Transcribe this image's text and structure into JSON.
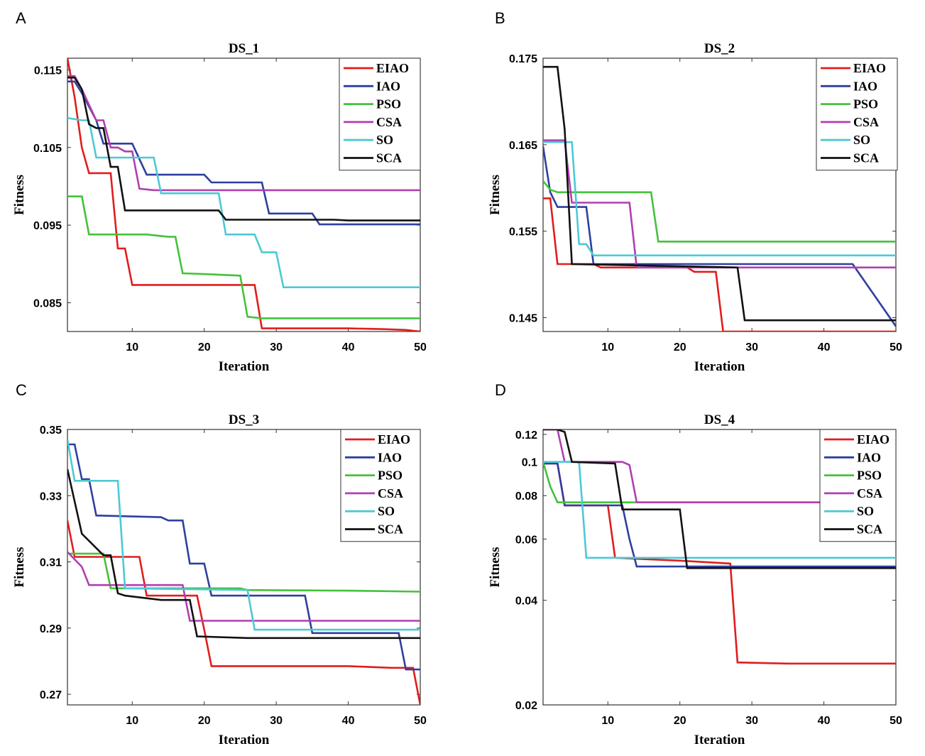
{
  "colors": {
    "EIAO": "#e11d1d",
    "IAO": "#2f3f9e",
    "PSO": "#44c23a",
    "CSA": "#b13fb0",
    "SO": "#4cc9d6",
    "SCA": "#111111"
  },
  "chart_data": [
    {
      "panel": "A",
      "type": "line",
      "title": "DS_1",
      "xlabel": "Iteration",
      "ylabel": "Fitness",
      "xlim": [
        1,
        50
      ],
      "ylim": [
        0.0813,
        0.1165
      ],
      "xticks": [
        10,
        20,
        30,
        40,
        50
      ],
      "yticks": [
        0.085,
        0.095,
        0.105,
        0.115
      ],
      "ytick_labels": [
        "0.085",
        "0.095",
        "0.105",
        "0.115"
      ],
      "legend_position": "top-right",
      "series": [
        {
          "name": "EIAO",
          "x": [
            1,
            2,
            3,
            4,
            6,
            7,
            8,
            9,
            10,
            22,
            27,
            28,
            40,
            45,
            48,
            50
          ],
          "y": [
            0.1165,
            0.1115,
            0.105,
            0.1017,
            0.1017,
            0.1017,
            0.092,
            0.092,
            0.0873,
            0.0873,
            0.0873,
            0.0817,
            0.0817,
            0.0816,
            0.0815,
            0.0813
          ]
        },
        {
          "name": "IAO",
          "x": [
            1,
            2,
            3,
            5,
            6,
            9,
            10,
            12,
            20,
            21,
            28,
            29,
            35,
            36,
            50
          ],
          "y": [
            0.1135,
            0.1135,
            0.112,
            0.1085,
            0.1055,
            0.1055,
            0.1055,
            0.1015,
            0.1015,
            0.1005,
            0.1005,
            0.0965,
            0.0965,
            0.0951,
            0.0951
          ]
        },
        {
          "name": "PSO",
          "x": [
            1,
            3,
            4,
            12,
            15,
            16,
            17,
            20,
            25,
            26,
            28,
            50
          ],
          "y": [
            0.0987,
            0.0987,
            0.0938,
            0.0938,
            0.0935,
            0.0935,
            0.0888,
            0.0887,
            0.0885,
            0.0832,
            0.083,
            0.083
          ]
        },
        {
          "name": "CSA",
          "x": [
            1,
            2,
            3,
            5,
            6,
            7,
            8,
            9,
            10,
            11,
            13,
            50
          ],
          "y": [
            0.1142,
            0.1142,
            0.1125,
            0.1085,
            0.1085,
            0.105,
            0.105,
            0.1045,
            0.1045,
            0.0997,
            0.0995,
            0.0995
          ]
        },
        {
          "name": "SO",
          "x": [
            1,
            3,
            4,
            5,
            13,
            14,
            22,
            23,
            27,
            28,
            30,
            31,
            50
          ],
          "y": [
            0.1088,
            0.1085,
            0.1085,
            0.1037,
            0.1037,
            0.0991,
            0.0991,
            0.0938,
            0.0938,
            0.0915,
            0.0915,
            0.087,
            0.087
          ]
        },
        {
          "name": "SCA",
          "x": [
            1,
            2,
            3,
            4,
            5,
            6,
            7,
            8,
            9,
            22,
            23,
            38,
            40,
            50
          ],
          "y": [
            0.114,
            0.114,
            0.1125,
            0.108,
            0.1075,
            0.1075,
            0.1025,
            0.1025,
            0.0969,
            0.0969,
            0.0957,
            0.0957,
            0.0956,
            0.0956
          ]
        }
      ]
    },
    {
      "panel": "B",
      "type": "line",
      "title": "DS_2",
      "xlabel": "Iteration",
      "ylabel": "Fitness",
      "xlim": [
        1,
        50
      ],
      "ylim": [
        0.1434,
        0.175
      ],
      "xticks": [
        10,
        20,
        30,
        40,
        50
      ],
      "yticks": [
        0.145,
        0.155,
        0.165,
        0.175
      ],
      "ytick_labels": [
        "0.145",
        "0.155",
        "0.165",
        "0.175"
      ],
      "legend_position": "top-right",
      "series": [
        {
          "name": "EIAO",
          "x": [
            1,
            2,
            3,
            8,
            9,
            10,
            21,
            22,
            25,
            26,
            50
          ],
          "y": [
            0.1588,
            0.1588,
            0.1512,
            0.1512,
            0.1508,
            0.1508,
            0.1508,
            0.1503,
            0.1503,
            0.1434,
            0.1434
          ]
        },
        {
          "name": "IAO",
          "x": [
            1,
            2,
            3,
            6,
            7,
            8,
            44,
            50
          ],
          "y": [
            0.1648,
            0.1595,
            0.1578,
            0.1578,
            0.1578,
            0.1512,
            0.1512,
            0.144
          ]
        },
        {
          "name": "PSO",
          "x": [
            1,
            2,
            3,
            16,
            17,
            50
          ],
          "y": [
            0.1608,
            0.1598,
            0.1595,
            0.1595,
            0.1538,
            0.1538
          ]
        },
        {
          "name": "CSA",
          "x": [
            1,
            3,
            4,
            5,
            13,
            14,
            50
          ],
          "y": [
            0.1655,
            0.1655,
            0.1655,
            0.1583,
            0.1583,
            0.1508,
            0.1508
          ]
        },
        {
          "name": "SO",
          "x": [
            1,
            5,
            6,
            7,
            8,
            50
          ],
          "y": [
            0.1653,
            0.1653,
            0.1535,
            0.1535,
            0.1522,
            0.1522
          ]
        },
        {
          "name": "SCA",
          "x": [
            1,
            3,
            4,
            5,
            28,
            29,
            50
          ],
          "y": [
            0.174,
            0.174,
            0.1668,
            0.1512,
            0.1508,
            0.1447,
            0.1447
          ]
        }
      ]
    },
    {
      "panel": "C",
      "type": "line",
      "title": "DS_3",
      "xlabel": "Iteration",
      "ylabel": "Fitness",
      "xlim": [
        1,
        50
      ],
      "ylim": [
        0.2668,
        0.35
      ],
      "xticks": [
        10,
        20,
        30,
        40,
        50
      ],
      "yticks": [
        0.27,
        0.29,
        0.31,
        0.33,
        0.35
      ],
      "ytick_labels": [
        "0.27",
        "0.29",
        "0.31",
        "0.33",
        "0.35"
      ],
      "legend_position": "top-right",
      "series": [
        {
          "name": "EIAO",
          "x": [
            1,
            2,
            11,
            12,
            19,
            20,
            21,
            30,
            40,
            46,
            49,
            50
          ],
          "y": [
            0.3225,
            0.3115,
            0.3115,
            0.2998,
            0.2998,
            0.2895,
            0.2785,
            0.2785,
            0.2785,
            0.278,
            0.278,
            0.2668
          ]
        },
        {
          "name": "IAO",
          "x": [
            1,
            2,
            3,
            4,
            5,
            14,
            15,
            17,
            18,
            20,
            21,
            34,
            35,
            47,
            48,
            50
          ],
          "y": [
            0.3455,
            0.3455,
            0.335,
            0.335,
            0.324,
            0.3235,
            0.3225,
            0.3225,
            0.3095,
            0.3095,
            0.2998,
            0.2998,
            0.2885,
            0.2885,
            0.2775,
            0.2775
          ]
        },
        {
          "name": "PSO",
          "x": [
            1,
            6,
            7,
            25,
            26,
            40,
            50
          ],
          "y": [
            0.3125,
            0.3125,
            0.302,
            0.302,
            0.3015,
            0.3013,
            0.301
          ]
        },
        {
          "name": "CSA",
          "x": [
            1,
            3,
            4,
            17,
            18,
            50
          ],
          "y": [
            0.313,
            0.3085,
            0.303,
            0.303,
            0.2922,
            0.2922
          ]
        },
        {
          "name": "SO",
          "x": [
            1,
            2,
            8,
            9,
            26,
            27,
            50
          ],
          "y": [
            0.347,
            0.3345,
            0.3345,
            0.302,
            0.3015,
            0.2895,
            0.2895
          ]
        },
        {
          "name": "SCA",
          "x": [
            1,
            3,
            6,
            7,
            8,
            9,
            14,
            18,
            19,
            26,
            30,
            50
          ],
          "y": [
            0.338,
            0.3185,
            0.312,
            0.312,
            0.3005,
            0.2998,
            0.2985,
            0.2985,
            0.2875,
            0.287,
            0.287,
            0.287
          ]
        }
      ]
    },
    {
      "panel": "D",
      "type": "line",
      "title": "DS_4",
      "xlabel": "Iteration",
      "ylabel": "Fitness",
      "xlim": [
        1,
        50
      ],
      "ylim": [
        0.02,
        0.124
      ],
      "yscale": "log",
      "xticks": [
        10,
        20,
        30,
        40,
        50
      ],
      "yticks": [
        0.02,
        0.04,
        0.06,
        0.08,
        0.1,
        0.12
      ],
      "ytick_labels": [
        "0.02",
        "0.04",
        "0.06",
        "0.08",
        "0.1",
        "0.12"
      ],
      "legend_position": "top-right",
      "series": [
        {
          "name": "EIAO",
          "x": [
            1,
            2,
            3,
            4,
            10,
            11,
            20,
            27,
            28,
            35,
            50
          ],
          "y": [
            0.099,
            0.099,
            0.099,
            0.075,
            0.075,
            0.053,
            0.052,
            0.051,
            0.0265,
            0.0263,
            0.0263
          ]
        },
        {
          "name": "IAO",
          "x": [
            1,
            3,
            4,
            12,
            13,
            14,
            50
          ],
          "y": [
            0.099,
            0.099,
            0.075,
            0.075,
            0.06,
            0.05,
            0.05
          ]
        },
        {
          "name": "PSO",
          "x": [
            1,
            2,
            3,
            50
          ],
          "y": [
            0.1,
            0.085,
            0.0765,
            0.0765
          ]
        },
        {
          "name": "CSA",
          "x": [
            1,
            3,
            4,
            12,
            13,
            14,
            50
          ],
          "y": [
            0.124,
            0.124,
            0.1,
            0.1,
            0.098,
            0.0765,
            0.0765
          ]
        },
        {
          "name": "SO",
          "x": [
            1,
            2,
            6,
            7,
            50
          ],
          "y": [
            0.1,
            0.1,
            0.1,
            0.053,
            0.053
          ]
        },
        {
          "name": "SCA",
          "x": [
            1,
            3,
            4,
            5,
            11,
            12,
            20,
            21,
            50
          ],
          "y": [
            0.124,
            0.124,
            0.122,
            0.1,
            0.099,
            0.073,
            0.073,
            0.0495,
            0.0495
          ]
        }
      ]
    }
  ]
}
